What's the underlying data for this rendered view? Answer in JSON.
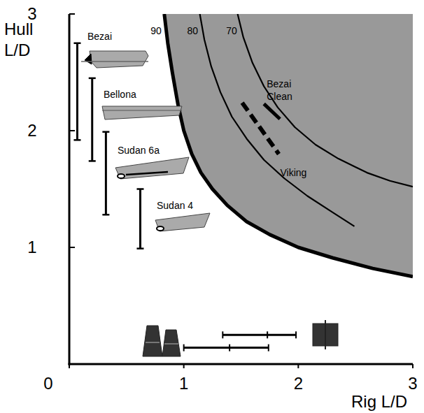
{
  "chart_data": {
    "type": "line",
    "x_label": "Rig L/D",
    "y_label": "Hull L/D",
    "xlim": [
      0,
      3
    ],
    "ylim": [
      0,
      3
    ],
    "xticks": [
      0,
      1,
      2,
      3
    ],
    "yticks": [
      1,
      2,
      3
    ],
    "series": [
      {
        "name": "90",
        "type": "area",
        "color": "#000000",
        "line_style": "thick",
        "x": [
          0.83,
          0.86,
          0.9,
          0.95,
          1.0,
          1.07,
          1.15,
          1.25,
          1.38,
          1.55,
          1.75,
          2.0,
          2.3,
          2.65,
          3.0
        ],
        "values": [
          3.0,
          2.75,
          2.5,
          2.22,
          2.0,
          1.8,
          1.64,
          1.5,
          1.36,
          1.22,
          1.11,
          1.0,
          0.91,
          0.82,
          0.75
        ]
      },
      {
        "name": "80",
        "type": "line",
        "color": "#000000",
        "line_style": "solid",
        "x": [
          1.14,
          1.18,
          1.24,
          1.32,
          1.42,
          1.55,
          1.7,
          1.88,
          2.08,
          2.3,
          2.49
        ],
        "values": [
          3.0,
          2.78,
          2.55,
          2.33,
          2.12,
          1.93,
          1.75,
          1.59,
          1.44,
          1.3,
          1.18
        ]
      },
      {
        "name": "70",
        "type": "line",
        "color": "#000000",
        "line_style": "solid",
        "x": [
          1.47,
          1.52,
          1.6,
          1.7,
          1.82,
          1.97,
          2.15,
          2.35,
          2.6,
          2.8,
          3.0
        ],
        "values": [
          3.0,
          2.8,
          2.58,
          2.38,
          2.2,
          2.03,
          1.88,
          1.76,
          1.64,
          1.57,
          1.52
        ]
      },
      {
        "name": "Bezai Clean",
        "type": "line",
        "color": "#000000",
        "line_style": "thick",
        "x": [
          1.7,
          1.84
        ],
        "values": [
          2.23,
          2.1
        ]
      },
      {
        "name": "Viking",
        "type": "line",
        "color": "#000000",
        "line_style": "dashed",
        "x": [
          1.51,
          1.83
        ],
        "values": [
          2.24,
          1.8
        ]
      }
    ],
    "hull_ranges": [
      {
        "name": "Bezai",
        "x": 0.07,
        "low": 1.92,
        "high": 2.75
      },
      {
        "name": "Bellona",
        "x": 0.2,
        "low": 1.74,
        "high": 2.45
      },
      {
        "name": "Sudan 6a",
        "x": 0.32,
        "low": 1.28,
        "high": 1.99
      },
      {
        "name": "Sudan 4",
        "x": 0.62,
        "low": 0.99,
        "high": 1.5
      }
    ],
    "rig_ranges": [
      {
        "y": 0.14,
        "low": 1.0,
        "mid": 1.4,
        "high": 1.74
      },
      {
        "y": 0.25,
        "low": 1.34,
        "mid": 1.73,
        "high": 1.98
      }
    ]
  }
}
